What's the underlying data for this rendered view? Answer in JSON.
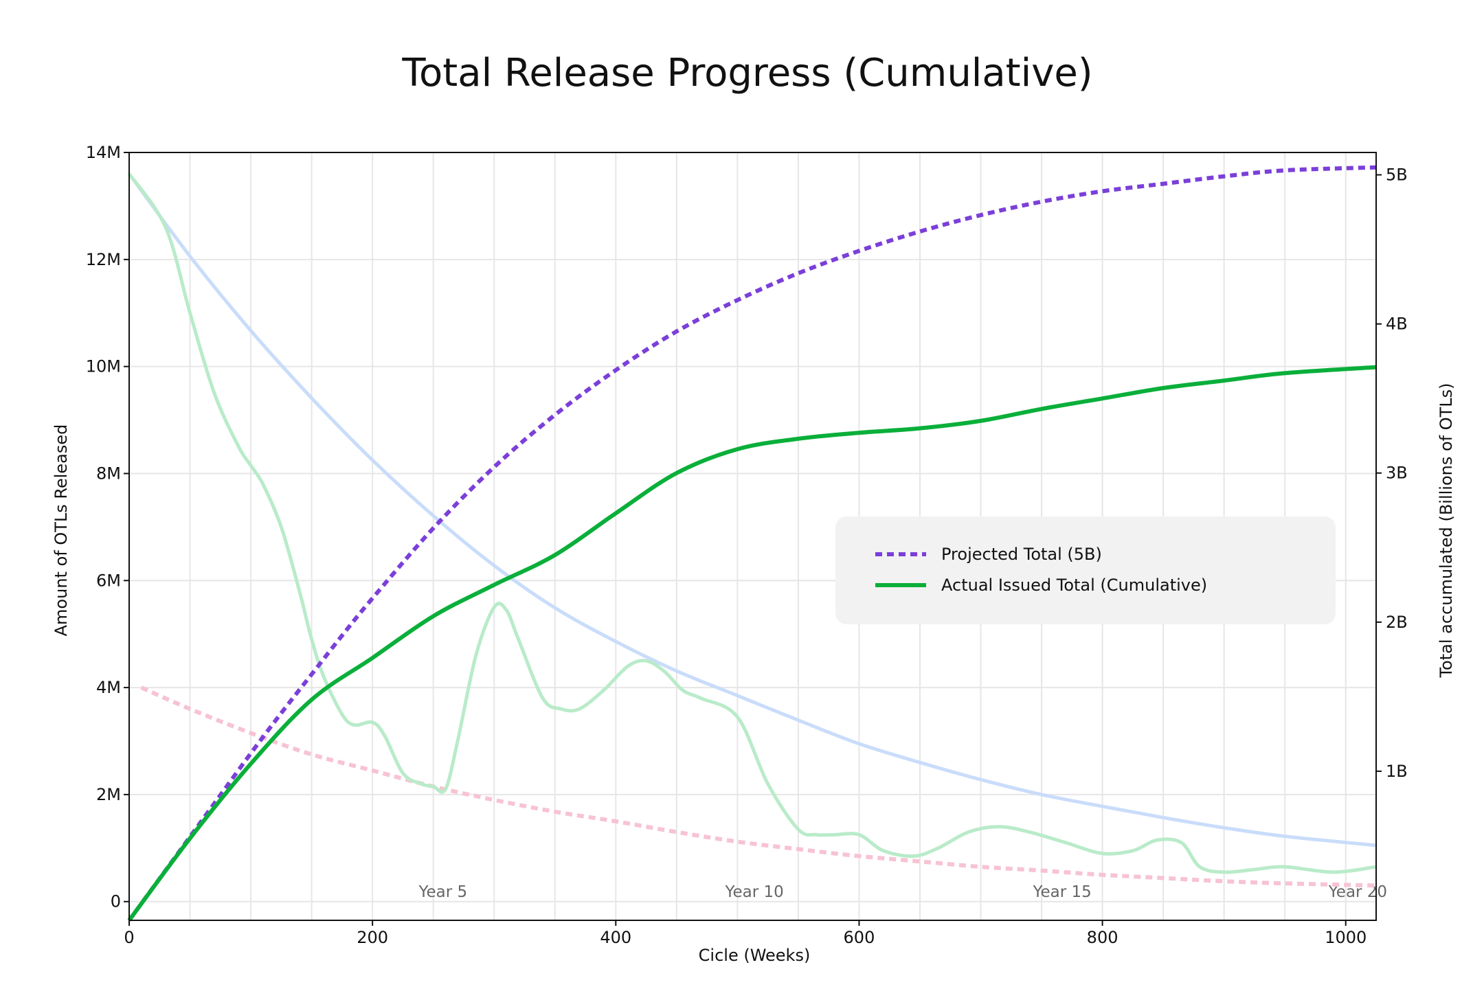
{
  "chart_data": {
    "type": "line",
    "title": "Total Release Progress (Cumulative)",
    "xlabel": "Cicle (Weeks)",
    "ylabel_left": "Amount of OTLs Released",
    "ylabel_right": "Total accumulated (Billions of OTLs)",
    "xlim": [
      0,
      1025
    ],
    "ylim_left": [
      -350000,
      14000000
    ],
    "ylim_right": [
      0,
      5.15
    ],
    "x_ticks": [
      "0",
      "200",
      "400",
      "600",
      "800",
      "1000"
    ],
    "x_tick_values": [
      0,
      200,
      400,
      600,
      800,
      1000
    ],
    "y_left_ticks": [
      "0",
      "2M",
      "4M",
      "6M",
      "8M",
      "10M",
      "12M",
      "14M"
    ],
    "y_left_tick_values": [
      0,
      2000000,
      4000000,
      6000000,
      8000000,
      10000000,
      12000000,
      14000000
    ],
    "y_right_ticks": [
      "1B",
      "2B",
      "3B",
      "4B",
      "5B"
    ],
    "y_right_tick_values": [
      1,
      2,
      3,
      4,
      5
    ],
    "grid": true,
    "legend_position": "center-right",
    "year_markers": [
      {
        "label": "Year 5",
        "x": 258
      },
      {
        "label": "Year 10",
        "x": 514
      },
      {
        "label": "Year 15",
        "x": 767
      },
      {
        "label": "Year 20",
        "x": 1010
      }
    ],
    "series": [
      {
        "name": "Projected Total (5B)",
        "axis": "right",
        "style": "dotted",
        "color": "#7b3fd9",
        "in_legend": true,
        "x": [
          0,
          25,
          50,
          75,
          100,
          125,
          150,
          175,
          200,
          250,
          300,
          350,
          400,
          450,
          500,
          550,
          600,
          650,
          700,
          750,
          800,
          850,
          900,
          950,
          1025
        ],
        "values": [
          0.0,
          0.28,
          0.56,
          0.84,
          1.12,
          1.39,
          1.65,
          1.91,
          2.16,
          2.63,
          3.04,
          3.39,
          3.69,
          3.95,
          4.16,
          4.34,
          4.49,
          4.62,
          4.73,
          4.82,
          4.89,
          4.94,
          4.99,
          5.03,
          5.05
        ]
      },
      {
        "name": "Actual Issued Total (Cumulative)",
        "axis": "right",
        "style": "solid",
        "color": "#0aaf3a",
        "in_legend": true,
        "x": [
          0,
          50,
          100,
          150,
          200,
          250,
          300,
          350,
          400,
          450,
          500,
          550,
          600,
          650,
          700,
          750,
          800,
          850,
          900,
          950,
          1025
        ],
        "values": [
          0.0,
          0.55,
          1.05,
          1.48,
          1.76,
          2.04,
          2.25,
          2.45,
          2.73,
          3.0,
          3.16,
          3.23,
          3.27,
          3.3,
          3.35,
          3.43,
          3.5,
          3.57,
          3.62,
          3.67,
          3.71
        ]
      },
      {
        "axis": "left",
        "style": "solid",
        "color": "#c9dcfa",
        "in_legend": false,
        "x": [
          0,
          50,
          100,
          150,
          200,
          250,
          300,
          350,
          400,
          450,
          500,
          550,
          600,
          650,
          700,
          750,
          800,
          850,
          900,
          950,
          1025
        ],
        "values": [
          13600000,
          12060000,
          10670000,
          9410000,
          8250000,
          7210000,
          6280000,
          5490000,
          4860000,
          4310000,
          3850000,
          3390000,
          2950000,
          2600000,
          2280000,
          2000000,
          1780000,
          1570000,
          1380000,
          1220000,
          1050000
        ]
      },
      {
        "axis": "left",
        "style": "dotted",
        "color": "#f7c3d3",
        "in_legend": false,
        "x": [
          10,
          50,
          100,
          150,
          200,
          250,
          300,
          350,
          400,
          450,
          500,
          550,
          600,
          650,
          700,
          750,
          800,
          850,
          900,
          950,
          1025
        ],
        "values": [
          4000000,
          3600000,
          3150000,
          2750000,
          2450000,
          2150000,
          1900000,
          1680000,
          1500000,
          1300000,
          1120000,
          980000,
          850000,
          750000,
          650000,
          580000,
          500000,
          440000,
          380000,
          340000,
          300000
        ]
      },
      {
        "axis": "left",
        "style": "solid",
        "color": "#b9ebc9",
        "in_legend": false,
        "x": [
          0,
          30,
          50,
          70,
          90,
          100,
          110,
          125,
          140,
          150,
          160,
          175,
          185,
          200,
          210,
          225,
          240,
          250,
          260,
          270,
          285,
          300,
          310,
          320,
          340,
          355,
          370,
          390,
          410,
          425,
          440,
          455,
          470,
          500,
          525,
          550,
          565,
          580,
          600,
          620,
          645,
          665,
          690,
          715,
          740,
          770,
          800,
          825,
          845,
          865,
          880,
          900,
          925,
          950,
          990,
          1025
        ],
        "values": [
          13600000,
          12600000,
          11000000,
          9500000,
          8500000,
          8150000,
          7800000,
          7000000,
          5800000,
          4900000,
          4200000,
          3500000,
          3300000,
          3350000,
          3100000,
          2400000,
          2200000,
          2150000,
          2100000,
          3000000,
          4600000,
          5500000,
          5450000,
          4900000,
          3800000,
          3600000,
          3600000,
          3950000,
          4400000,
          4500000,
          4300000,
          3950000,
          3800000,
          3450000,
          2200000,
          1350000,
          1250000,
          1250000,
          1250000,
          950000,
          850000,
          1000000,
          1300000,
          1400000,
          1300000,
          1100000,
          900000,
          950000,
          1150000,
          1100000,
          650000,
          550000,
          600000,
          650000,
          550000,
          650000
        ]
      }
    ]
  }
}
